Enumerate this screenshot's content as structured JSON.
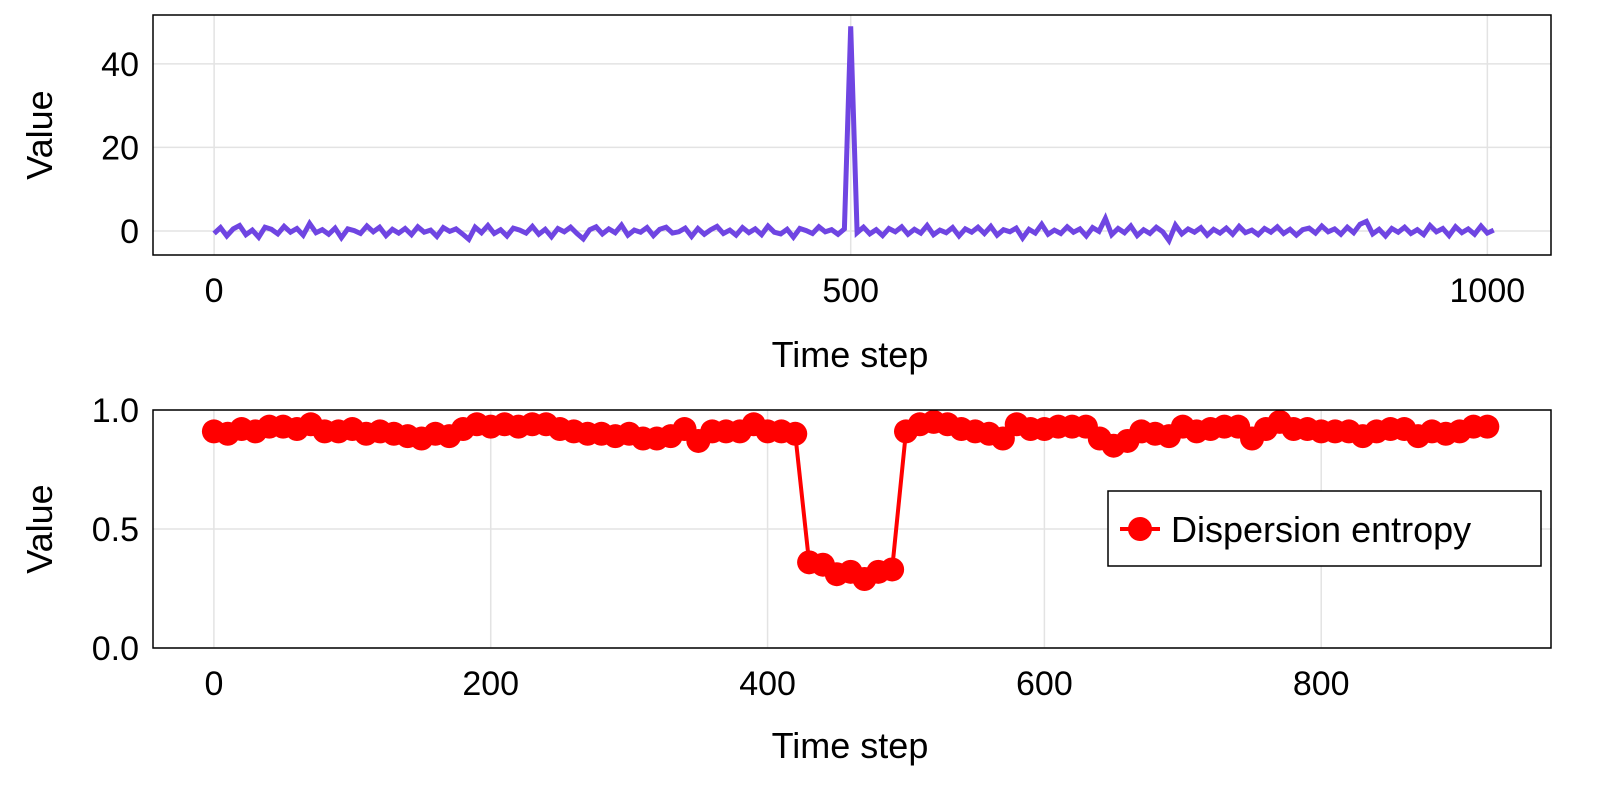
{
  "chart_data": [
    {
      "type": "line",
      "title": "",
      "xlabel": "Time step",
      "ylabel": "Value",
      "xlim": [
        -48,
        1050
      ],
      "ylim": [
        -5.75,
        51.7
      ],
      "xticks": [
        0,
        500,
        1000
      ],
      "yticks": [
        0,
        20,
        40
      ],
      "grid": true,
      "color": "#6f45e2",
      "x_start": 0,
      "x_step": 5,
      "values": [
        -0.6,
        0.8,
        -1.2,
        0.5,
        1.3,
        -0.9,
        0.2,
        -1.5,
        0.9,
        0.4,
        -0.7,
        1.1,
        -0.3,
        0.6,
        -1.0,
        1.8,
        -0.4,
        0.3,
        -0.8,
        0.7,
        -1.6,
        0.5,
        0.1,
        -0.6,
        1.2,
        -0.2,
        0.9,
        -1.1,
        0.4,
        -0.5,
        0.6,
        -0.9,
        1.0,
        -0.3,
        0.2,
        -1.3,
        0.8,
        -0.1,
        0.5,
        -0.7,
        -2.0,
        0.9,
        -0.4,
        1.3,
        -0.6,
        0.3,
        -1.2,
        0.7,
        0.2,
        -0.5,
        1.1,
        -0.8,
        0.4,
        -1.4,
        0.6,
        -0.2,
        0.9,
        -0.6,
        -1.9,
        0.3,
        1.0,
        -0.7,
        0.5,
        -0.4,
        1.4,
        -1.0,
        0.2,
        -0.3,
        0.8,
        -1.1,
        0.4,
        0.9,
        -0.5,
        -0.2,
        0.7,
        -1.3,
        0.6,
        -0.8,
        0.3,
        1.1,
        -0.6,
        0.2,
        -1.0,
        0.8,
        -0.4,
        0.5,
        -0.9,
        1.2,
        -0.3,
        -0.7,
        0.4,
        -1.5,
        0.6,
        0.1,
        -0.6,
        1.0,
        -0.2,
        0.3,
        -0.8,
        0.5,
        49.0,
        -0.4,
        0.9,
        -0.7,
        0.3,
        -1.1,
        0.6,
        -0.2,
        1.0,
        -0.8,
        0.4,
        -0.5,
        1.3,
        -0.9,
        0.2,
        -0.4,
        0.8,
        -1.2,
        0.5,
        -0.3,
        0.9,
        -0.6,
        1.1,
        -1.0,
        0.3,
        -0.2,
        0.7,
        -1.7,
        0.4,
        -0.5,
        1.6,
        -0.8,
        0.2,
        -0.6,
        1.0,
        -0.3,
        0.5,
        -1.2,
        0.8,
        -0.1,
        3.0,
        -0.9,
        0.6,
        -0.4,
        1.2,
        -1.1,
        0.3,
        -0.6,
        0.9,
        -0.2,
        -2.3,
        1.4,
        -0.7,
        0.5,
        -0.3,
        0.8,
        -1.0,
        0.4,
        -0.5,
        0.7,
        -0.8,
        1.1,
        -0.4,
        0.2,
        -0.9,
        0.6,
        -0.3,
        1.0,
        -0.6,
        0.4,
        -1.0,
        0.3,
        0.7,
        -0.5,
        1.2,
        -0.2,
        0.5,
        -0.8,
        0.9,
        -0.4,
        1.6,
        2.3,
        -0.7,
        0.4,
        -1.2,
        0.6,
        -0.3,
        0.9,
        -0.6,
        0.3,
        -0.9,
        1.3,
        -0.2,
        0.6,
        -1.1,
        1.0,
        -0.4,
        0.5,
        -0.8,
        1.2,
        -0.5,
        0.2
      ]
    },
    {
      "type": "line",
      "title": "",
      "xlabel": "Time step",
      "ylabel": "Value",
      "xlim": [
        -44,
        966
      ],
      "ylim": [
        0.0,
        1.0
      ],
      "xticks": [
        0,
        200,
        400,
        600,
        800
      ],
      "yticks": [
        0.0,
        0.5,
        1.0
      ],
      "ytick_labels": [
        "0.0",
        "0.5",
        "1.0"
      ],
      "grid": true,
      "legend": {
        "entries": [
          "Dispersion entropy"
        ],
        "placement": "right"
      },
      "series": [
        {
          "name": "Dispersion entropy",
          "color": "#ff0000",
          "marker": "circle",
          "x_start": 0,
          "x_step": 10,
          "values": [
            0.91,
            0.9,
            0.92,
            0.91,
            0.93,
            0.93,
            0.92,
            0.94,
            0.91,
            0.91,
            0.92,
            0.9,
            0.91,
            0.9,
            0.89,
            0.88,
            0.9,
            0.89,
            0.92,
            0.94,
            0.93,
            0.94,
            0.93,
            0.94,
            0.94,
            0.92,
            0.91,
            0.9,
            0.9,
            0.89,
            0.9,
            0.88,
            0.88,
            0.89,
            0.92,
            0.87,
            0.91,
            0.91,
            0.91,
            0.94,
            0.91,
            0.91,
            0.9,
            0.36,
            0.35,
            0.31,
            0.32,
            0.29,
            0.32,
            0.33,
            0.91,
            0.94,
            0.95,
            0.94,
            0.92,
            0.91,
            0.9,
            0.88,
            0.94,
            0.92,
            0.92,
            0.93,
            0.93,
            0.93,
            0.88,
            0.85,
            0.87,
            0.91,
            0.9,
            0.89,
            0.93,
            0.91,
            0.92,
            0.93,
            0.93,
            0.88,
            0.92,
            0.95,
            0.92,
            0.92,
            0.91,
            0.91,
            0.91,
            0.89,
            0.91,
            0.92,
            0.92,
            0.89,
            0.91,
            0.9,
            0.91,
            0.93,
            0.93
          ]
        }
      ]
    }
  ]
}
